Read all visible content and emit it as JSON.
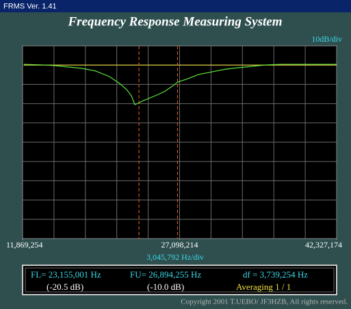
{
  "window": {
    "title": "FRMS  Ver. 1.41"
  },
  "header": {
    "title": "Frequency Response Measuring System"
  },
  "chart_data": {
    "type": "line",
    "y_scale_label": "10dB/div",
    "x_scale_label": "3,045,792  Hz/div",
    "xlim": [
      11869254,
      42327174
    ],
    "ylim": [
      -90,
      10
    ],
    "xticks": [
      {
        "value": 11869254,
        "label": "11,869,254"
      },
      {
        "value": 27098214,
        "label": "27,098,214"
      },
      {
        "value": 42327174,
        "label": "42,327,174"
      }
    ],
    "reference": {
      "value": 0,
      "color": "#e8d23c"
    },
    "markers": {
      "x": [
        23155001,
        26894255
      ],
      "color": "#e8642a"
    },
    "x": [
      12001968,
      13790000,
      14990000,
      16320000,
      17640000,
      18970000,
      20300000,
      21290000,
      21960000,
      22420000,
      22750000,
      22950000,
      23610000,
      24610000,
      25610000,
      26400000,
      26930000,
      27930000,
      28920000,
      30250000,
      31580000,
      32900000,
      34230000,
      35560000,
      36890000,
      42300000
    ],
    "series": [
      {
        "color": "#5ee83a",
        "values": [
          0.4,
          0.1,
          -0.3,
          -1.0,
          -1.7,
          -3.1,
          -6.0,
          -9.6,
          -12.7,
          -15.9,
          -20.5,
          -20.1,
          -18.4,
          -16.2,
          -13.8,
          -10.9,
          -8.8,
          -7.0,
          -4.9,
          -3.5,
          -2.1,
          -1.3,
          -0.6,
          0.1,
          0.4,
          0.4
        ]
      }
    ]
  },
  "readout": {
    "fl": "FL= 23,155,001  Hz",
    "fu": "FU= 26,894,255  Hz",
    "df": "df = 3,739,254  Hz",
    "fl_db": "(-20.5 dB)",
    "fu_db": "(-10.0 dB)",
    "averaging": "Averaging  1 / 1"
  },
  "footer": {
    "copyright": "Copyright 2001 T.UEBO/ JF3HZB, All rights reserved."
  }
}
